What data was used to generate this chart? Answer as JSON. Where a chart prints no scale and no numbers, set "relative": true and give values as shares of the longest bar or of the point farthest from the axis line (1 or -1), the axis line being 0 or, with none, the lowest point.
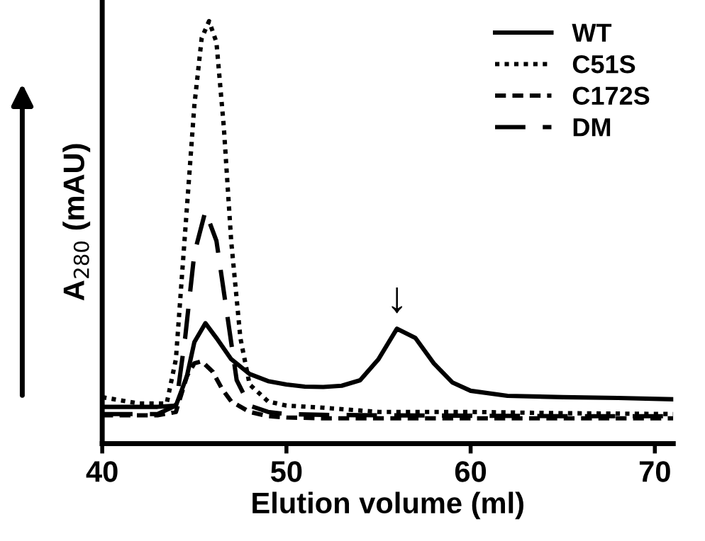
{
  "chart_data": {
    "type": "line",
    "xlabel": "Elution volume (ml)",
    "ylabel": "A$_{280}$ (mAU)",
    "relative": true,
    "xlim": [
      40,
      71
    ],
    "xticks": [
      40,
      50,
      60,
      70
    ],
    "legend": "top right",
    "color": "#000000",
    "series": [
      {
        "name": "WT",
        "line_style": "solid",
        "x": [
          40,
          43,
          44,
          44.6,
          45,
          45.6,
          46.2,
          47,
          48,
          49,
          50,
          51,
          52,
          53,
          54,
          55,
          56,
          57,
          58,
          59,
          60,
          62,
          65,
          68,
          71
        ],
        "values": [
          0.087,
          0.087,
          0.09,
          0.16,
          0.24,
          0.285,
          0.25,
          0.2,
          0.165,
          0.148,
          0.14,
          0.135,
          0.134,
          0.137,
          0.15,
          0.2,
          0.272,
          0.25,
          0.19,
          0.145,
          0.125,
          0.113,
          0.11,
          0.108,
          0.105
        ]
      },
      {
        "name": "C51S",
        "line_style": "dotted",
        "x": [
          40,
          42,
          43.5,
          44,
          44.5,
          45,
          45.4,
          45.8,
          46.2,
          46.6,
          47,
          47.5,
          48,
          49,
          50,
          52,
          55,
          60,
          65,
          71
        ],
        "values": [
          0.11,
          0.095,
          0.095,
          0.2,
          0.5,
          0.8,
          0.96,
          1.0,
          0.95,
          0.75,
          0.48,
          0.25,
          0.14,
          0.1,
          0.09,
          0.085,
          0.075,
          0.075,
          0.072,
          0.07
        ]
      },
      {
        "name": "C172S",
        "line_style": "dashed",
        "x": [
          40,
          43,
          44,
          44.6,
          45,
          45.4,
          46,
          46.5,
          47,
          48,
          49,
          50,
          52,
          55,
          60,
          65,
          71
        ],
        "values": [
          0.067,
          0.067,
          0.075,
          0.16,
          0.19,
          0.195,
          0.17,
          0.13,
          0.1,
          0.075,
          0.065,
          0.062,
          0.06,
          0.06,
          0.06,
          0.06,
          0.06
        ]
      },
      {
        "name": "DM",
        "line_style": "longdash",
        "x": [
          40,
          43,
          44,
          44.5,
          45,
          45.6,
          46.2,
          46.8,
          47.3,
          48,
          49,
          50,
          52,
          55,
          60,
          65,
          71
        ],
        "values": [
          0.07,
          0.07,
          0.09,
          0.25,
          0.45,
          0.55,
          0.48,
          0.3,
          0.15,
          0.09,
          0.075,
          0.07,
          0.068,
          0.067,
          0.066,
          0.065,
          0.065
        ]
      }
    ],
    "annotations": [
      {
        "text": "↓",
        "x": 56,
        "y": 0.272
      }
    ]
  }
}
